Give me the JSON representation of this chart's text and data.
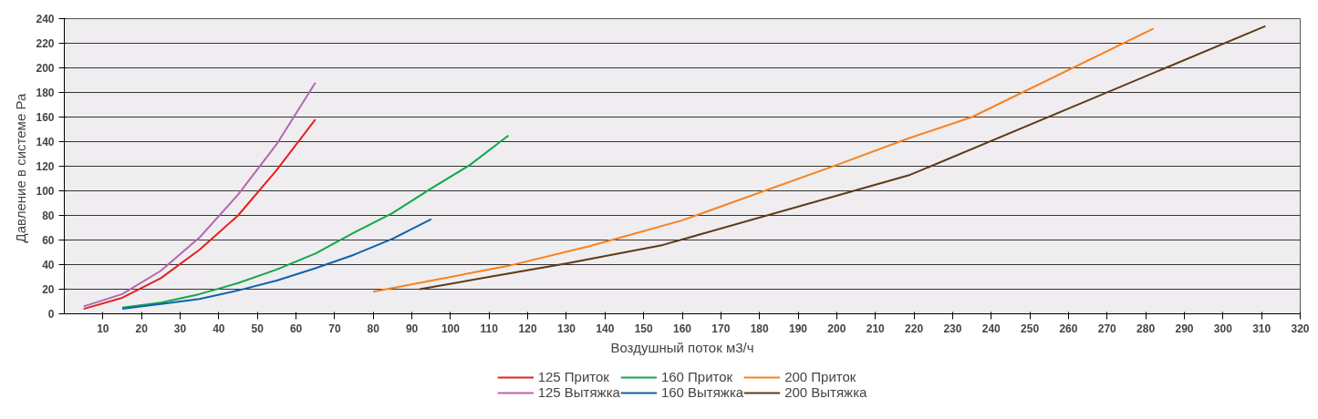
{
  "chart_data": {
    "type": "line",
    "xlabel": "Воздушный поток м3/ч",
    "ylabel": "Давление  в системе Ра",
    "xlim": [
      0,
      320
    ],
    "xticks": [
      10,
      20,
      30,
      40,
      50,
      60,
      70,
      80,
      90,
      100,
      110,
      120,
      130,
      140,
      150,
      160,
      170,
      180,
      190,
      200,
      210,
      220,
      230,
      240,
      250,
      260,
      270,
      280,
      290,
      300,
      310,
      320
    ],
    "ylim": [
      0,
      240
    ],
    "yticks": [
      0,
      20,
      40,
      60,
      80,
      100,
      120,
      140,
      160,
      180,
      200,
      220,
      240
    ],
    "grid": "y",
    "legend": "bottom",
    "marker": "none",
    "line_style": "solid",
    "series": [
      {
        "name": "125 Приток",
        "color": "#e3221f",
        "x": [
          5,
          15,
          25,
          35,
          45,
          55,
          65
        ],
        "values": [
          4,
          13,
          29,
          52,
          80,
          117,
          158
        ]
      },
      {
        "name": "125 Вытяжка",
        "color": "#b467ae",
        "x": [
          5,
          15,
          25,
          35,
          45,
          55,
          65
        ],
        "values": [
          6,
          16,
          35,
          62,
          97,
          138,
          188
        ]
      },
      {
        "name": "160 Приток",
        "color": "#12a84b",
        "x": [
          15,
          25,
          35,
          45,
          55,
          65,
          75,
          85,
          95,
          105,
          115
        ],
        "values": [
          5,
          9,
          16,
          25,
          36,
          49,
          66,
          82,
          102,
          121,
          145
        ]
      },
      {
        "name": "160 Вытяжка",
        "color": "#0d62b0",
        "x": [
          15,
          25,
          35,
          45,
          55,
          65,
          75,
          85,
          95
        ],
        "values": [
          4,
          8,
          12,
          19,
          27,
          37,
          48,
          61,
          77
        ]
      },
      {
        "name": "200 Приток",
        "color": "#f7821e",
        "x": [
          80,
          115,
          136,
          160,
          200,
          218,
          235,
          282
        ],
        "values": [
          18,
          39,
          55,
          76,
          121,
          142,
          160,
          232
        ]
      },
      {
        "name": "200 Вытяжка",
        "color": "#5e3b17",
        "x": [
          92,
          110,
          130,
          155,
          219,
          311
        ],
        "values": [
          20,
          30,
          41,
          56,
          113,
          234
        ]
      }
    ]
  }
}
